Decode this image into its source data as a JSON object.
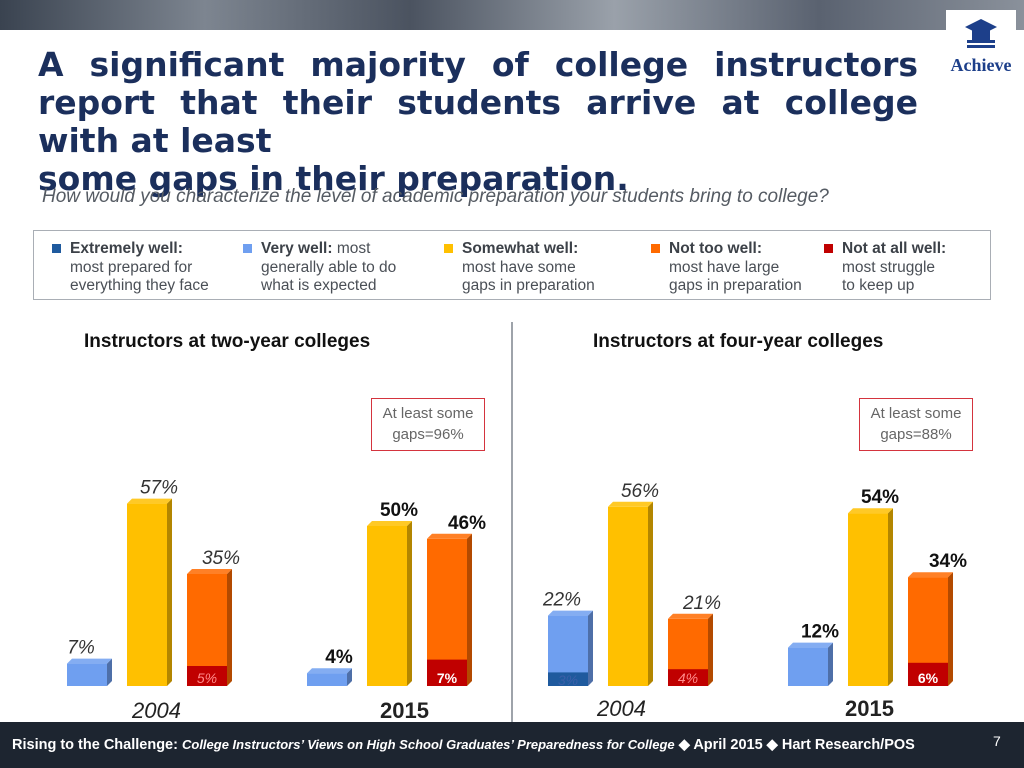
{
  "header": {
    "title_lines": [
      "A significant majority of college instructors report",
      "that their students arrive at college with at least",
      "some gaps in their preparation."
    ],
    "logo_text": "Achieve",
    "question": "How would you characterize the level of academic preparation your students bring to college?"
  },
  "legend": [
    {
      "bold": "Extremely well:",
      "rest_line1": "",
      "line2": "most prepared for",
      "line3": "everything they face",
      "color": "#1f5a9e"
    },
    {
      "bold": "Very well:",
      "rest_line1": " most",
      "line2": "generally able to do",
      "line3": "what is expected",
      "color": "#6f9ff0"
    },
    {
      "bold": "Somewhat well:",
      "rest_line1": "",
      "line2": "most have some",
      "line3": "gaps in preparation",
      "color": "#ffc000"
    },
    {
      "bold": "Not too well:",
      "rest_line1": "",
      "line2": "most have large",
      "line3": "gaps in preparation",
      "color": "#ff6a00"
    },
    {
      "bold": "Not at all well:",
      "rest_line1": "",
      "line2": "most struggle",
      "line3": "to keep up",
      "color": "#c00000"
    }
  ],
  "panels": [
    {
      "title": "Instructors at two-year colleges",
      "callout_line1": "At least some",
      "callout_line2": "gaps=96%"
    },
    {
      "title": "Instructors at four-year colleges",
      "callout_line1": "At least some",
      "callout_line2": "gaps=88%"
    }
  ],
  "chart_data": [
    {
      "type": "bar",
      "title": "Instructors at two-year colleges",
      "categories": [
        "2004",
        "2015"
      ],
      "series_order": [
        "Very well",
        "Somewhat well",
        "Not too well (with Not at all well stacked at base)"
      ],
      "groups": [
        {
          "year": "2004",
          "very_well": "7%",
          "very_well_value": 7,
          "somewhat_well": "57%",
          "somewhat_well_value": 57,
          "not_too_well": "35%",
          "not_too_well_value": 35,
          "not_at_all_well": "5%",
          "not_at_all_well_value": 5,
          "extremely_well": "",
          "extremely_well_value": 0
        },
        {
          "year": "2015",
          "very_well": "4%",
          "very_well_value": 4,
          "somewhat_well": "50%",
          "somewhat_well_value": 50,
          "not_too_well": "46%",
          "not_too_well_value": 46,
          "not_at_all_well": "7%",
          "not_at_all_well_value": 7,
          "extremely_well": "",
          "extremely_well_value": 0
        }
      ],
      "annotation": "At least some gaps=96%"
    },
    {
      "type": "bar",
      "title": "Instructors at four-year colleges",
      "categories": [
        "2004",
        "2015"
      ],
      "groups": [
        {
          "year": "2004",
          "very_well": "22%",
          "very_well_value": 22,
          "somewhat_well": "56%",
          "somewhat_well_value": 56,
          "not_too_well": "21%",
          "not_too_well_value": 21,
          "not_at_all_well": "4%",
          "not_at_all_well_value": 4,
          "extremely_well": "3%",
          "extremely_well_value": 3
        },
        {
          "year": "2015",
          "very_well": "12%",
          "very_well_value": 12,
          "somewhat_well": "54%",
          "somewhat_well_value": 54,
          "not_too_well": "34%",
          "not_too_well_value": 34,
          "not_at_all_well": "6%",
          "not_at_all_well_value": 6,
          "extremely_well": "",
          "extremely_well_value": 0
        }
      ],
      "annotation": "At least some gaps=88%"
    }
  ],
  "colors": {
    "extremely_well": "#1f5a9e",
    "very_well": "#6f9ff0",
    "somewhat_well": "#ffc000",
    "not_too_well": "#ff6a00",
    "not_at_all_well": "#c00000"
  },
  "footer": {
    "lead": "Rising to the Challenge:",
    "italic": "College Instructors’ Views on High School Graduates’ Preparedness for College",
    "tail": "◆ April 2015 ◆ Hart Research/POS",
    "page": "7"
  }
}
